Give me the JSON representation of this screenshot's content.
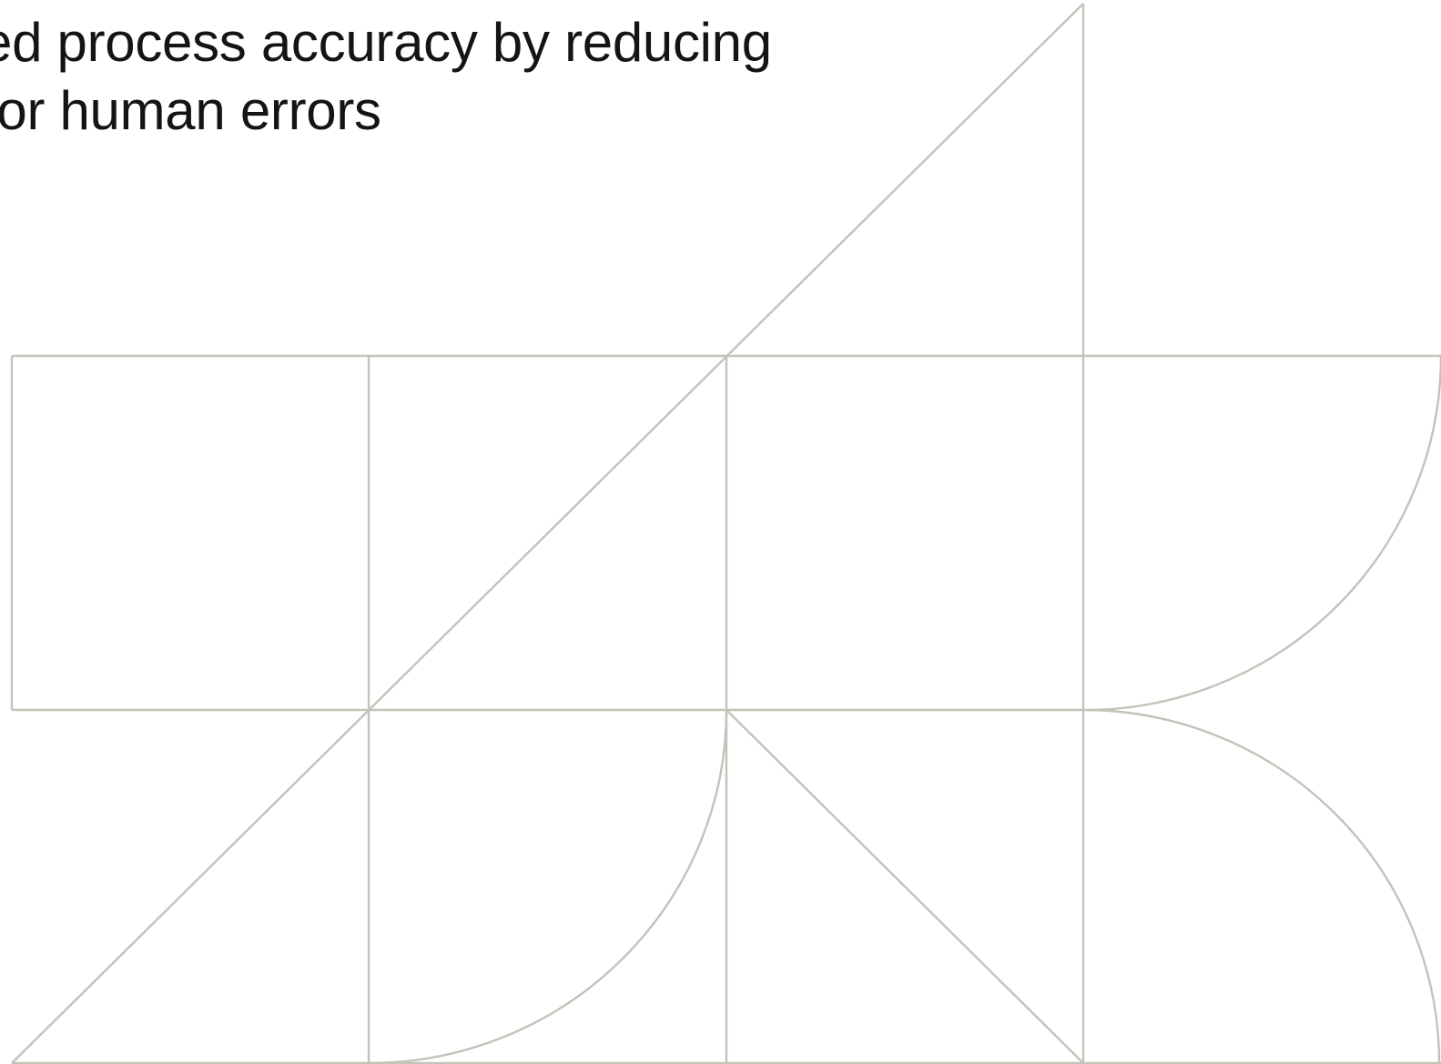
{
  "headline": {
    "line_1": "ed process accuracy by reducing",
    "line_2": "for human errors"
  },
  "colors": {
    "text": "#141414",
    "pattern_stroke": "#c3c3b9",
    "background": "#ffffff"
  }
}
